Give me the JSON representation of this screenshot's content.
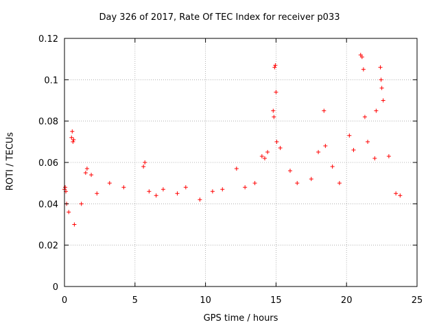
{
  "chart_data": {
    "type": "scatter",
    "title": "Day 326 of 2017, Rate Of TEC Index for receiver p033",
    "xlabel": "GPS time / hours",
    "ylabel": "ROTI / TECUs",
    "xlim": [
      0,
      25
    ],
    "ylim": [
      0,
      0.12
    ],
    "x_ticks": [
      "0",
      "5",
      "10",
      "15",
      "20",
      "25"
    ],
    "y_ticks": [
      "0",
      "0.02",
      "0.04",
      "0.06",
      "0.08",
      "0.1",
      "0.12"
    ],
    "grid": true,
    "marker": "+",
    "color": "#ff0000",
    "series": [
      {
        "points": [
          [
            0.0,
            0.047
          ],
          [
            0.05,
            0.048
          ],
          [
            0.1,
            0.046
          ],
          [
            0.15,
            0.04
          ],
          [
            0.3,
            0.036
          ],
          [
            0.5,
            0.072
          ],
          [
            0.55,
            0.075
          ],
          [
            0.6,
            0.07
          ],
          [
            0.65,
            0.071
          ],
          [
            0.7,
            0.03
          ],
          [
            1.2,
            0.04
          ],
          [
            1.5,
            0.055
          ],
          [
            1.6,
            0.057
          ],
          [
            1.9,
            0.054
          ],
          [
            2.3,
            0.045
          ],
          [
            3.2,
            0.05
          ],
          [
            4.2,
            0.048
          ],
          [
            5.6,
            0.058
          ],
          [
            5.7,
            0.06
          ],
          [
            6.0,
            0.046
          ],
          [
            6.5,
            0.044
          ],
          [
            7.0,
            0.047
          ],
          [
            8.0,
            0.045
          ],
          [
            8.6,
            0.048
          ],
          [
            9.6,
            0.042
          ],
          [
            10.5,
            0.046
          ],
          [
            11.2,
            0.047
          ],
          [
            12.2,
            0.057
          ],
          [
            12.8,
            0.048
          ],
          [
            13.5,
            0.05
          ],
          [
            14.0,
            0.063
          ],
          [
            14.2,
            0.062
          ],
          [
            14.4,
            0.065
          ],
          [
            14.8,
            0.085
          ],
          [
            14.85,
            0.082
          ],
          [
            14.9,
            0.106
          ],
          [
            14.95,
            0.107
          ],
          [
            15.0,
            0.094
          ],
          [
            15.05,
            0.07
          ],
          [
            15.3,
            0.067
          ],
          [
            16.0,
            0.056
          ],
          [
            16.5,
            0.05
          ],
          [
            17.5,
            0.052
          ],
          [
            18.0,
            0.065
          ],
          [
            18.4,
            0.085
          ],
          [
            18.5,
            0.068
          ],
          [
            19.0,
            0.058
          ],
          [
            19.5,
            0.05
          ],
          [
            20.2,
            0.073
          ],
          [
            20.5,
            0.066
          ],
          [
            21.0,
            0.112
          ],
          [
            21.1,
            0.111
          ],
          [
            21.2,
            0.105
          ],
          [
            21.3,
            0.082
          ],
          [
            21.5,
            0.07
          ],
          [
            22.0,
            0.062
          ],
          [
            22.1,
            0.085
          ],
          [
            22.4,
            0.106
          ],
          [
            22.45,
            0.1
          ],
          [
            22.5,
            0.096
          ],
          [
            22.6,
            0.09
          ],
          [
            23.0,
            0.063
          ],
          [
            23.5,
            0.045
          ],
          [
            23.8,
            0.044
          ]
        ]
      }
    ]
  }
}
